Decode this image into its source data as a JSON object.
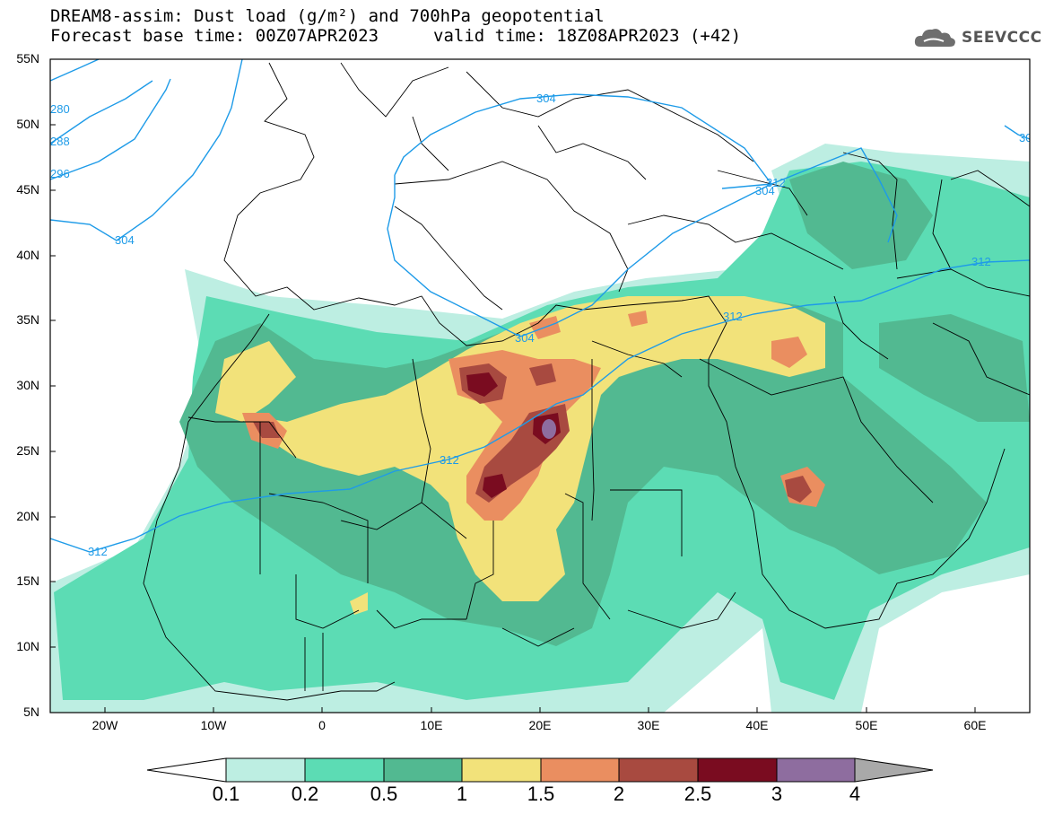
{
  "title": {
    "line1": "DREAM8-assim: Dust load (g/m²) and 700hPa geopotential",
    "line2_base": "Forecast base time: 00Z07APR2023",
    "line2_valid": "valid time: 18Z08APR2023 (+42)"
  },
  "logo": {
    "text": "SEEVCCC",
    "icon": "cloud-icon"
  },
  "map": {
    "lat_labels": [
      "55N",
      "50N",
      "45N",
      "40N",
      "35N",
      "30N",
      "25N",
      "20N",
      "15N",
      "10N",
      "5N"
    ],
    "lon_labels": [
      "20W",
      "10W",
      "0",
      "10E",
      "20E",
      "30E",
      "40E",
      "50E",
      "60E"
    ],
    "contour_labels": [
      "304",
      "304",
      "304",
      "304",
      "312",
      "312",
      "312",
      "312",
      "312",
      "280",
      "288",
      "296",
      "30"
    ]
  },
  "colorbar": {
    "levels": [
      "0.1",
      "0.2",
      "0.5",
      "1",
      "1.5",
      "2",
      "2.5",
      "3",
      "4"
    ],
    "colors": [
      "#bdeee2",
      "#5cdcb4",
      "#52b991",
      "#f2e27a",
      "#ea8e60",
      "#a84a40",
      "#7a0c20",
      "#8e6d9f",
      "#a9a9a9"
    ]
  }
}
